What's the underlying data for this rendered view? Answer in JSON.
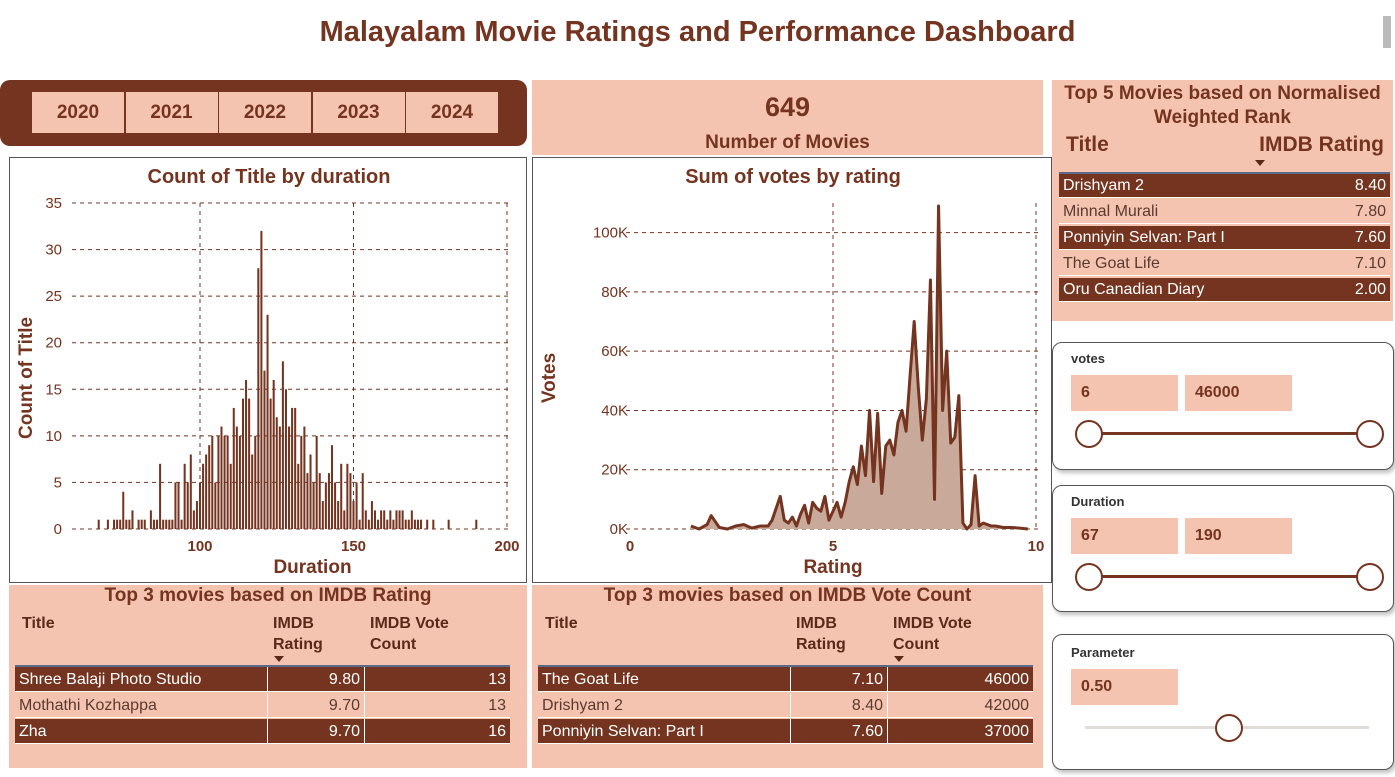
{
  "title": "Malayalam Movie Ratings and Performance Dashboard",
  "years": [
    "2020",
    "2021",
    "2022",
    "2023",
    "2024"
  ],
  "kpi": {
    "value": "649",
    "label": "Number of Movies"
  },
  "top5": {
    "title": "Top 5 Movies based on Normalised Weighted Rank",
    "headers": [
      "Title",
      "IMDB Rating"
    ],
    "rows": [
      [
        "Drishyam 2",
        "8.40"
      ],
      [
        "Minnal Murali",
        "7.80"
      ],
      [
        "Ponniyin Selvan: Part I",
        "7.60"
      ],
      [
        "The Goat Life",
        "7.10"
      ],
      [
        "Oru Canadian Diary",
        "2.00"
      ]
    ]
  },
  "chart_data": [
    {
      "type": "bar",
      "title": "Count of Title by duration",
      "x_label": "Duration",
      "y_label": "Count of Title",
      "color": "#74341f",
      "grid": true,
      "x": [
        67,
        68,
        69,
        70,
        71,
        72,
        73,
        74,
        75,
        76,
        77,
        78,
        79,
        80,
        81,
        82,
        83,
        84,
        85,
        86,
        87,
        88,
        89,
        90,
        91,
        92,
        93,
        94,
        95,
        96,
        97,
        98,
        99,
        100,
        101,
        102,
        103,
        104,
        105,
        106,
        107,
        108,
        109,
        110,
        111,
        112,
        113,
        114,
        115,
        116,
        117,
        118,
        119,
        120,
        121,
        122,
        123,
        124,
        125,
        126,
        127,
        128,
        129,
        130,
        131,
        132,
        133,
        134,
        135,
        136,
        137,
        138,
        139,
        140,
        141,
        142,
        143,
        144,
        145,
        146,
        147,
        148,
        149,
        150,
        151,
        152,
        153,
        154,
        155,
        156,
        157,
        158,
        159,
        160,
        161,
        162,
        163,
        164,
        165,
        166,
        167,
        168,
        169,
        170,
        171,
        172,
        173,
        174,
        175,
        176,
        181,
        190
      ],
      "values": [
        1,
        0,
        0,
        1,
        0,
        1,
        1,
        1,
        4,
        1,
        1,
        2,
        0,
        1,
        1,
        1,
        0,
        2,
        1,
        1,
        7,
        1,
        1,
        1,
        1,
        5,
        5,
        1,
        7,
        5,
        8,
        2,
        3,
        5,
        7,
        8,
        9,
        10,
        5,
        10,
        11,
        10,
        10,
        7,
        13,
        11,
        10,
        14,
        16,
        14,
        8,
        10,
        28,
        32,
        17,
        23,
        14,
        16,
        12,
        11,
        18,
        15,
        11,
        13,
        13,
        7,
        10,
        11,
        6,
        8,
        5,
        10,
        6,
        3,
        5,
        6,
        9,
        5,
        3,
        7,
        2,
        7,
        6,
        3,
        5,
        1,
        6,
        2,
        1,
        3,
        2,
        1,
        2,
        2,
        1,
        2,
        1,
        2,
        2,
        2,
        1,
        1,
        2,
        1,
        1,
        1,
        0,
        1,
        0,
        1,
        1,
        1
      ],
      "xlim": [
        57,
        200
      ],
      "ylim": [
        0,
        35
      ],
      "xticks": [
        100,
        150,
        200
      ],
      "yticks": [
        0,
        5,
        10,
        15,
        20,
        25,
        30,
        35
      ]
    },
    {
      "type": "area",
      "title": "Sum of votes by rating",
      "x_label": "Rating",
      "y_label": "Votes",
      "color": "#74341f",
      "fill": "#c9a99a",
      "grid": true,
      "x": [
        1.5,
        1.7,
        1.9,
        2.0,
        2.2,
        2.4,
        2.6,
        2.8,
        3.0,
        3.2,
        3.4,
        3.5,
        3.6,
        3.7,
        3.8,
        3.9,
        4.0,
        4.1,
        4.2,
        4.3,
        4.4,
        4.5,
        4.6,
        4.7,
        4.8,
        4.9,
        5.0,
        5.1,
        5.2,
        5.3,
        5.4,
        5.5,
        5.6,
        5.7,
        5.8,
        5.9,
        6.0,
        6.1,
        6.2,
        6.3,
        6.4,
        6.5,
        6.6,
        6.7,
        6.8,
        6.9,
        7.0,
        7.1,
        7.2,
        7.3,
        7.4,
        7.5,
        7.6,
        7.7,
        7.8,
        7.9,
        8.0,
        8.1,
        8.2,
        8.3,
        8.4,
        8.5,
        8.6,
        8.7,
        8.8,
        8.9,
        9.0,
        9.2,
        9.4,
        9.6,
        9.8
      ],
      "values": [
        1000,
        0,
        1500,
        4500,
        500,
        0,
        1000,
        1500,
        300,
        1000,
        1000,
        3000,
        7000,
        11000,
        3000,
        2000,
        4000,
        1000,
        5000,
        8000,
        2000,
        9000,
        7000,
        6000,
        11000,
        3000,
        6000,
        9000,
        4000,
        9000,
        16000,
        21000,
        15000,
        28000,
        18000,
        40000,
        16000,
        39000,
        12000,
        28000,
        30000,
        25000,
        36000,
        40000,
        33000,
        52000,
        70000,
        48000,
        30000,
        44000,
        84000,
        10000,
        109000,
        40000,
        60000,
        29000,
        31000,
        45000,
        2000,
        0,
        1500,
        18000,
        1000,
        2000,
        1500,
        1000,
        1000,
        500,
        500,
        300,
        0
      ],
      "xlim": [
        0,
        10
      ],
      "ylim": [
        0,
        110000
      ],
      "xticks": [
        0,
        5,
        10
      ],
      "yticks": [
        {
          "value": 0,
          "label": "0K"
        },
        {
          "value": 20000,
          "label": "20K"
        },
        {
          "value": 40000,
          "label": "40K"
        },
        {
          "value": 60000,
          "label": "60K"
        },
        {
          "value": 80000,
          "label": "80K"
        },
        {
          "value": 100000,
          "label": "100K"
        }
      ]
    }
  ],
  "top3_rating": {
    "title": "Top 3 movies based on IMDB Rating",
    "headers": [
      "Title",
      "IMDB Rating",
      "IMDB Vote Count"
    ],
    "rows": [
      [
        "Shree Balaji Photo Studio",
        "9.80",
        "13"
      ],
      [
        "Mothathi Kozhappa",
        "9.70",
        "13"
      ],
      [
        "Zha",
        "9.70",
        "16"
      ]
    ]
  },
  "top3_votes": {
    "title": "Top 3 movies based on IMDB Vote Count",
    "headers": [
      "Title",
      "IMDB Rating",
      "IMDB Vote Count"
    ],
    "rows": [
      [
        "The Goat Life",
        "7.10",
        "46000"
      ],
      [
        "Drishyam 2",
        "8.40",
        "42000"
      ],
      [
        "Ponniyin Selvan: Part I",
        "7.60",
        "37000"
      ]
    ]
  },
  "slicers": [
    {
      "label": "votes",
      "min": "6",
      "max": "46000"
    },
    {
      "label": "Duration",
      "min": "67",
      "max": "190"
    }
  ],
  "parameter": {
    "label": "Parameter",
    "value": "0.50"
  }
}
